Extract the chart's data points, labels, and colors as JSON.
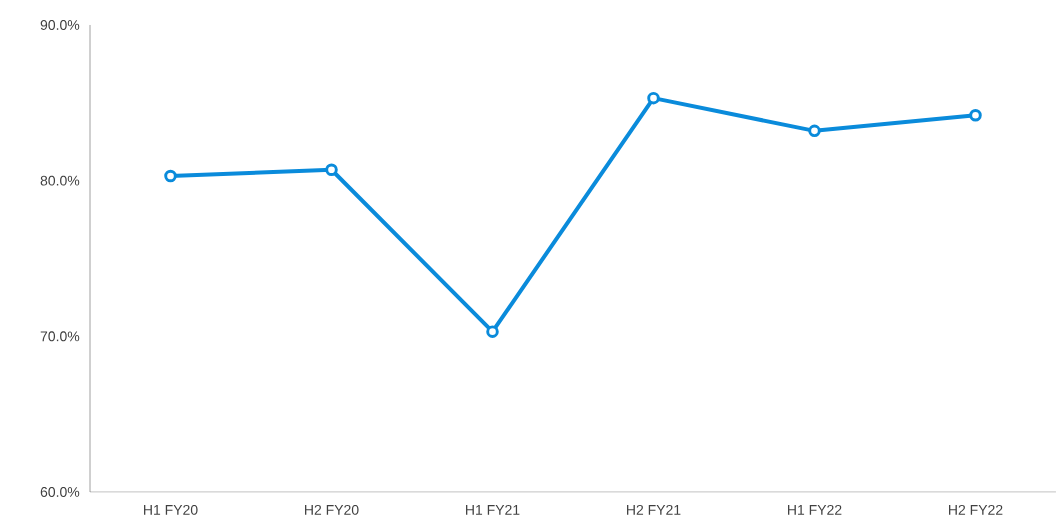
{
  "chart_data": {
    "type": "line",
    "categories": [
      "H1 FY20",
      "H2 FY20",
      "H1 FY21",
      "H2 FY21",
      "H1 FY22",
      "H2 FY22"
    ],
    "series": [
      {
        "color": "#0a8bdb",
        "values": [
          80.3,
          80.7,
          70.3,
          85.3,
          83.2,
          84.2
        ]
      }
    ],
    "ylim": [
      60,
      90
    ],
    "yticks": [
      {
        "value": 60,
        "label": "60.0%"
      },
      {
        "value": 70,
        "label": "70.0%"
      },
      {
        "value": 80,
        "label": "80.0%"
      },
      {
        "value": 90,
        "label": "90.0%"
      }
    ],
    "grid": false,
    "marker": "circle",
    "line_style": "solid"
  }
}
